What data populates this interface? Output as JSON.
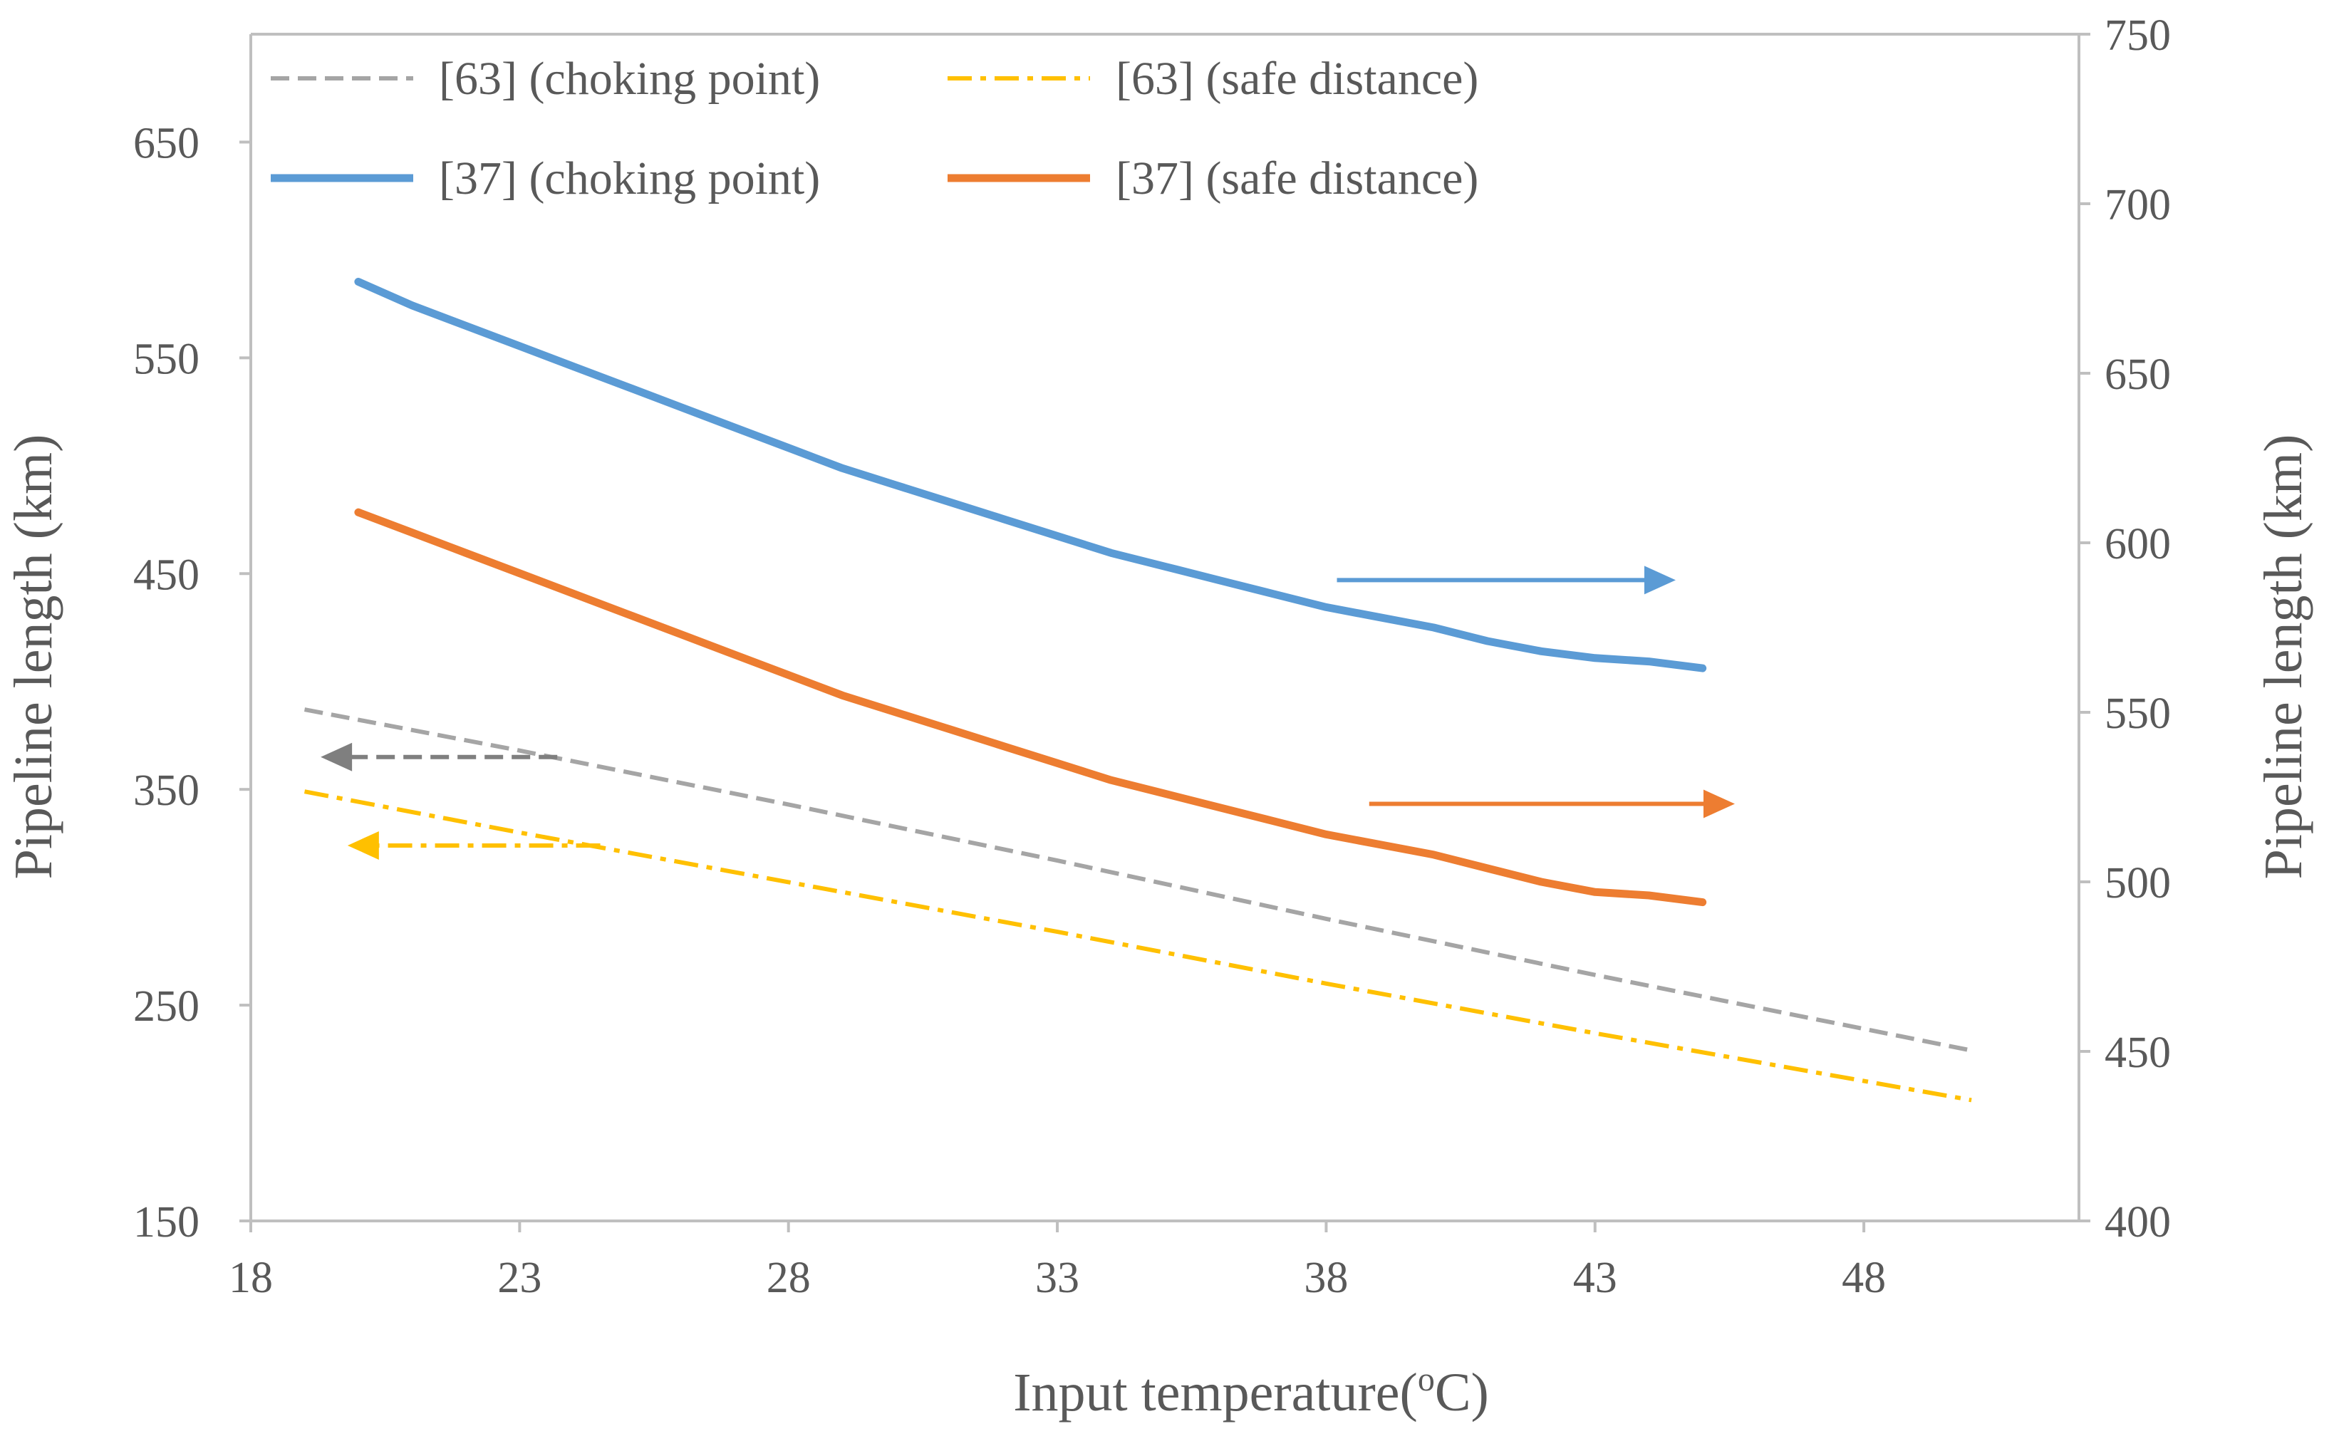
{
  "chart_data": {
    "type": "line",
    "title": "",
    "xlabel": "Input temperature(°C)",
    "xlabel_parts": {
      "prefix": "Input temperature(",
      "superscript": "o",
      "suffix": "C)"
    },
    "ylabel_left": "Pipeline length (km)",
    "ylabel_right": "Pipeline length (km)",
    "xlim": [
      18,
      52
    ],
    "ylim_left": [
      150,
      700
    ],
    "ylim_right": [
      400,
      750
    ],
    "x_ticks": [
      18,
      23,
      28,
      33,
      38,
      43,
      48
    ],
    "y_left_ticks": [
      150,
      250,
      350,
      450,
      550,
      650
    ],
    "y_right_ticks": [
      400,
      450,
      500,
      550,
      600,
      650,
      700,
      750
    ],
    "grid": false,
    "legend_position": "top-left",
    "series": [
      {
        "name": "[63] (choking point)",
        "axis": "left",
        "color": "#a5a5a5",
        "style": "dashed",
        "x": [
          19,
          23,
          28,
          33,
          38,
          43,
          50
        ],
        "y": [
          387,
          368,
          343,
          317,
          290,
          264,
          229
        ]
      },
      {
        "name": "[63] (safe distance)",
        "axis": "left",
        "color": "#ffc000",
        "style": "dashdot",
        "x": [
          19,
          23,
          28,
          33,
          38,
          43,
          50
        ],
        "y": [
          349,
          330,
          307,
          284,
          260,
          237,
          206
        ]
      },
      {
        "name": "[37] (choking point)",
        "axis": "right",
        "color": "#5b9bd5",
        "style": "solid",
        "x": [
          20,
          21,
          22,
          23,
          24,
          25,
          26,
          27,
          28,
          29,
          30,
          31,
          32,
          33,
          34,
          35,
          36,
          37,
          38,
          39,
          40,
          41,
          42,
          43,
          44,
          45
        ],
        "y": [
          677,
          670,
          664,
          658,
          652,
          646,
          640,
          634,
          628,
          622,
          617,
          612,
          607,
          602,
          597,
          593,
          589,
          585,
          581,
          578,
          575,
          571,
          568,
          566,
          565,
          563
        ]
      },
      {
        "name": "[37] (safe distance)",
        "axis": "right",
        "color": "#ed7d31",
        "style": "solid",
        "x": [
          20,
          21,
          22,
          23,
          24,
          25,
          26,
          27,
          28,
          29,
          30,
          31,
          32,
          33,
          34,
          35,
          36,
          37,
          38,
          39,
          40,
          41,
          42,
          43,
          44,
          45
        ],
        "y": [
          609,
          603,
          597,
          591,
          585,
          579,
          573,
          567,
          561,
          555,
          550,
          545,
          540,
          535,
          530,
          526,
          522,
          518,
          514,
          511,
          508,
          504,
          500,
          497,
          496,
          494
        ]
      }
    ],
    "axis_indicators": [
      {
        "series": "[63] (choking point)",
        "direction": "left",
        "color": "#7f7f7f",
        "style": "dashed",
        "x_from": 23.7,
        "x_to": 19.3,
        "axis": "left",
        "y": 365
      },
      {
        "series": "[63] (safe distance)",
        "direction": "left",
        "color": "#ffc000",
        "style": "dashdot",
        "x_from": 24.5,
        "x_to": 19.8,
        "axis": "left",
        "y": 324
      },
      {
        "series": "[37] (choking point)",
        "direction": "right",
        "color": "#5b9bd5",
        "style": "solid",
        "x_from": 38.2,
        "x_to": 44.5,
        "axis": "right",
        "y": 589
      },
      {
        "series": "[37] (safe distance)",
        "direction": "right",
        "color": "#ed7d31",
        "style": "solid",
        "x_from": 38.8,
        "x_to": 45.6,
        "axis": "right",
        "y": 523
      }
    ]
  }
}
